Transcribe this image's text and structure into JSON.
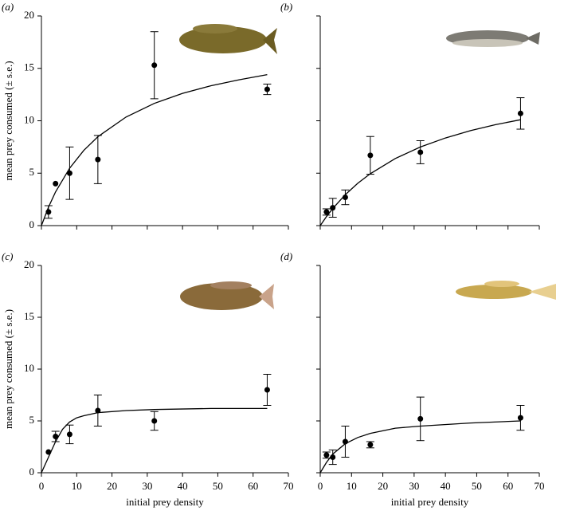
{
  "chart_data": [
    {
      "type": "scatter",
      "label": "(a)",
      "ylabel": "mean prey consumed (± s.e.)",
      "xlim": [
        0,
        70
      ],
      "ylim": [
        0,
        20
      ],
      "xticks": [
        0,
        10,
        20,
        30,
        40,
        50,
        60,
        70
      ],
      "yticks": [
        0,
        5,
        10,
        15,
        20
      ],
      "xtick_labels": false,
      "ytick_labels": true,
      "series": [
        {
          "type": "scatter",
          "color": "#000000",
          "x": [
            2,
            4,
            8,
            16,
            32,
            64
          ],
          "values": [
            1.3,
            4.0,
            5.0,
            6.3,
            15.3,
            13.0
          ],
          "errors": [
            0.6,
            null,
            2.5,
            2.3,
            3.2,
            0.5
          ]
        },
        {
          "type": "line",
          "color": "#000000",
          "x": [
            0,
            2,
            4,
            8,
            12,
            16,
            24,
            32,
            40,
            48,
            56,
            64
          ],
          "values": [
            0,
            1.76,
            3.21,
            5.48,
            7.17,
            8.48,
            10.36,
            11.66,
            12.61,
            13.34,
            13.91,
            14.4
          ]
        }
      ]
    },
    {
      "type": "scatter",
      "label": "(b)",
      "xlim": [
        0,
        70
      ],
      "ylim": [
        0,
        20
      ],
      "xticks": [
        0,
        10,
        20,
        30,
        40,
        50,
        60,
        70
      ],
      "yticks": [
        0,
        5,
        10,
        15,
        20
      ],
      "xtick_labels": false,
      "ytick_labels": false,
      "series": [
        {
          "type": "scatter",
          "color": "#000000",
          "x": [
            2,
            4,
            8,
            16,
            32,
            64
          ],
          "values": [
            1.3,
            1.7,
            2.7,
            6.7,
            7.0,
            10.7
          ],
          "errors": [
            0.3,
            0.9,
            0.7,
            1.8,
            1.1,
            1.5
          ]
        },
        {
          "type": "line",
          "color": "#000000",
          "x": [
            0,
            2,
            4,
            8,
            12,
            16,
            24,
            32,
            40,
            48,
            56,
            64
          ],
          "values": [
            0,
            0.86,
            1.63,
            2.95,
            4.04,
            4.95,
            6.4,
            7.5,
            8.36,
            9.06,
            9.63,
            10.1
          ]
        }
      ]
    },
    {
      "type": "scatter",
      "label": "(c)",
      "ylabel": "mean prey consumed (± s.e.)",
      "xlabel": "initial prey density",
      "xlim": [
        0,
        70
      ],
      "ylim": [
        0,
        20
      ],
      "xticks": [
        0,
        10,
        20,
        30,
        40,
        50,
        60,
        70
      ],
      "yticks": [
        0,
        5,
        10,
        15,
        20
      ],
      "xtick_labels": true,
      "ytick_labels": true,
      "series": [
        {
          "type": "scatter",
          "color": "#000000",
          "x": [
            2,
            4,
            8,
            16,
            32,
            64
          ],
          "values": [
            2.0,
            3.5,
            3.7,
            6.0,
            5.0,
            8.0
          ],
          "errors": [
            null,
            0.5,
            0.9,
            1.5,
            0.9,
            1.5
          ]
        },
        {
          "type": "line",
          "color": "#000000",
          "x": [
            0,
            2,
            4,
            6,
            8,
            10,
            12,
            16,
            24,
            32,
            48,
            64
          ],
          "values": [
            0,
            1.5,
            3.0,
            4.2,
            4.9,
            5.3,
            5.5,
            5.8,
            6.0,
            6.1,
            6.2,
            6.2
          ]
        }
      ]
    },
    {
      "type": "scatter",
      "label": "(d)",
      "xlabel": "initial prey density",
      "xlim": [
        0,
        70
      ],
      "ylim": [
        0,
        20
      ],
      "xticks": [
        0,
        10,
        20,
        30,
        40,
        50,
        60,
        70
      ],
      "yticks": [
        0,
        5,
        10,
        15,
        20
      ],
      "xtick_labels": true,
      "ytick_labels": false,
      "series": [
        {
          "type": "scatter",
          "color": "#000000",
          "x": [
            2,
            4,
            8,
            16,
            32,
            64
          ],
          "values": [
            1.7,
            1.5,
            3.0,
            2.7,
            5.2,
            5.3
          ],
          "errors": [
            0.3,
            0.7,
            1.5,
            0.3,
            2.1,
            1.2
          ]
        },
        {
          "type": "line",
          "color": "#000000",
          "x": [
            0,
            2,
            4,
            8,
            12,
            16,
            24,
            32,
            48,
            64
          ],
          "values": [
            0,
            1.0,
            1.8,
            2.8,
            3.4,
            3.8,
            4.3,
            4.5,
            4.8,
            5.0
          ]
        }
      ]
    }
  ]
}
